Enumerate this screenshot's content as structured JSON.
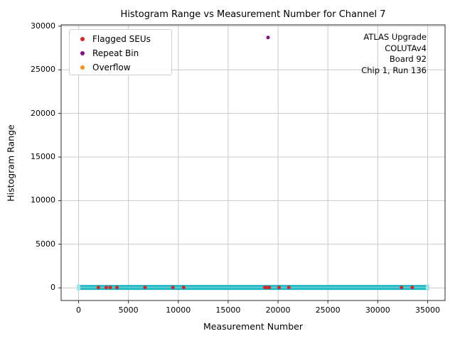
{
  "chart_data": {
    "type": "scatter",
    "title": "Histogram Range vs Measurement Number for Channel 7",
    "xlabel": "Measurement Number",
    "ylabel": "Histogram Range",
    "xlim": [
      -1750,
      36750
    ],
    "ylim": [
      -1450,
      30150
    ],
    "xticks": [
      0,
      5000,
      10000,
      15000,
      20000,
      25000,
      30000,
      35000
    ],
    "yticks": [
      0,
      5000,
      10000,
      15000,
      20000,
      25000,
      30000
    ],
    "grid": true,
    "grid_color": "#c9c9c9",
    "spine_color": "#2a2a2a",
    "legend": {
      "position": "upper left",
      "entries": [
        {
          "label": "Flagged SEUs",
          "color": "#d62728"
        },
        {
          "label": "Repeat Bin",
          "color": "#8b0f8b"
        },
        {
          "label": "Overflow",
          "color": "#ff9015"
        }
      ]
    },
    "annotation": {
      "align": "right",
      "lines": [
        "ATLAS Upgrade",
        "COLUTAv4",
        "Board 92",
        "Chip 1, Run 136"
      ]
    },
    "series": [
      {
        "name": "baseline-band",
        "type": "band",
        "description": "dense run of ~35000 measurements with histogram range near 0",
        "color": "#1db8c2",
        "center_color": "#5ecdd4",
        "cap_color": "#9fe3e7",
        "x_start": 0,
        "x_end": 35000,
        "y": 50
      },
      {
        "name": "Flagged SEUs",
        "type": "scatter",
        "color": "#d62728",
        "points": [
          [
            1984,
            50
          ],
          [
            2772,
            50
          ],
          [
            3174,
            50
          ],
          [
            3847,
            50
          ],
          [
            6663,
            50
          ],
          [
            9457,
            50
          ],
          [
            10532,
            50
          ],
          [
            18680,
            50
          ],
          [
            18920,
            50
          ],
          [
            19120,
            50
          ],
          [
            20100,
            50
          ],
          [
            21080,
            50
          ],
          [
            32385,
            50
          ],
          [
            33460,
            50
          ]
        ]
      },
      {
        "name": "Repeat Bin",
        "type": "scatter",
        "color": "#8b0f8b",
        "points": [
          [
            19000,
            28700
          ]
        ]
      },
      {
        "name": "Overflow",
        "type": "scatter",
        "color": "#ff9015",
        "points": []
      }
    ]
  }
}
